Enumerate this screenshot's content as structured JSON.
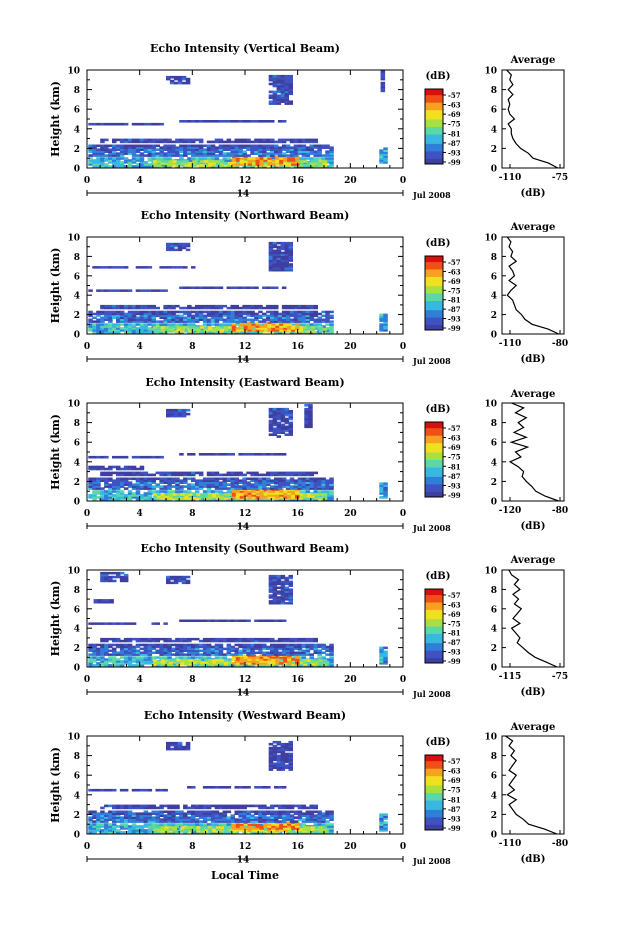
{
  "figure": {
    "xlabel": "Local Time",
    "date_label": "Jul 2008",
    "day_label": "14",
    "colorbar_unit": "(dB)",
    "colorbar_ticks": [
      "-57",
      "-63",
      "-69",
      "-75",
      "-81",
      "-87",
      "-93",
      "-99"
    ],
    "average_title": "Average",
    "average_xlabel": "(dB)"
  },
  "colormap": [
    "#e8ffe8",
    "#3f3fa0",
    "#3f52c2",
    "#2f7fd8",
    "#38b8e0",
    "#5cd8a8",
    "#a8e040",
    "#f0e020",
    "#f8a020",
    "#f05018",
    "#d81010"
  ],
  "chart_data": [
    {
      "type": "heatmap",
      "title": "Echo Intensity (Vertical Beam)",
      "xlabel": "Local Time",
      "ylabel": "Height (km)",
      "xlim": [
        0,
        24
      ],
      "ylim": [
        0,
        10
      ],
      "xticks": [
        "0",
        "4",
        "8",
        "12",
        "16",
        "20",
        "0"
      ],
      "yticks": [
        "0",
        "2",
        "4",
        "6",
        "8",
        "10"
      ],
      "colorbar": {
        "label": "(dB)",
        "range": [
          -99,
          -57
        ],
        "ticks": [
          "-57",
          "-63",
          "-69",
          "-75",
          "-81",
          "-87",
          "-93",
          "-99"
        ]
      },
      "average": {
        "title": "Average",
        "xlabel": "(dB)",
        "xticks": [
          "-110",
          "-75"
        ],
        "xlim": [
          -112,
          -72
        ],
        "heights": [
          0,
          0.5,
          1,
          1.5,
          2,
          2.5,
          3,
          3.5,
          4,
          4.5,
          5,
          5.5,
          6,
          6.5,
          7,
          7.5,
          8,
          8.5,
          9,
          9.5,
          10
        ],
        "values": [
          -76,
          -82,
          -92,
          -95,
          -100,
          -103,
          -105,
          -106,
          -106,
          -108,
          -104,
          -107,
          -108,
          -107,
          -108,
          -105,
          -108,
          -105,
          -107,
          -106,
          -109
        ]
      }
    },
    {
      "type": "heatmap",
      "title": "Echo Intensity (Northward Beam)",
      "xlabel": "Local Time",
      "ylabel": "Height (km)",
      "xlim": [
        0,
        24
      ],
      "ylim": [
        0,
        10
      ],
      "xticks": [
        "0",
        "4",
        "8",
        "12",
        "16",
        "20",
        "0"
      ],
      "yticks": [
        "0",
        "2",
        "4",
        "6",
        "8",
        "10"
      ],
      "colorbar": {
        "label": "(dB)",
        "range": [
          -99,
          -57
        ],
        "ticks": [
          "-57",
          "-63",
          "-69",
          "-75",
          "-81",
          "-87",
          "-93",
          "-99"
        ]
      },
      "average": {
        "title": "Average",
        "xlabel": "(dB)",
        "xticks": [
          "-110",
          "-80"
        ],
        "xlim": [
          -112,
          -77
        ],
        "heights": [
          0,
          0.5,
          1,
          1.5,
          2,
          2.5,
          3,
          3.5,
          4,
          4.5,
          5,
          5.5,
          6,
          6.5,
          7,
          7.5,
          8,
          8.5,
          9,
          9.5,
          10
        ],
        "values": [
          -80,
          -86,
          -95,
          -99,
          -101,
          -104,
          -105,
          -106,
          -109,
          -107,
          -104,
          -108,
          -105,
          -106,
          -108,
          -104,
          -107,
          -106,
          -108,
          -107,
          -109
        ]
      }
    },
    {
      "type": "heatmap",
      "title": "Echo Intensity (Eastward Beam)",
      "xlabel": "Local Time",
      "ylabel": "Height (km)",
      "xlim": [
        0,
        24
      ],
      "ylim": [
        0,
        10
      ],
      "xticks": [
        "0",
        "4",
        "8",
        "12",
        "16",
        "20",
        "0"
      ],
      "yticks": [
        "0",
        "2",
        "4",
        "6",
        "8",
        "10"
      ],
      "colorbar": {
        "label": "(dB)",
        "range": [
          -99,
          -57
        ],
        "ticks": [
          "-57",
          "-63",
          "-69",
          "-75",
          "-81",
          "-87",
          "-93",
          "-99"
        ]
      },
      "average": {
        "title": "Average",
        "xlabel": "(dB)",
        "xticks": [
          "-120",
          "-80"
        ],
        "xlim": [
          -122,
          -76
        ],
        "heights": [
          0,
          0.5,
          1,
          1.5,
          2,
          2.5,
          3,
          3.5,
          4,
          4.5,
          5,
          5.5,
          6,
          6.5,
          7,
          7.5,
          8,
          8.5,
          9,
          9.5,
          10
        ],
        "values": [
          -80,
          -90,
          -97,
          -100,
          -104,
          -107,
          -106,
          -110,
          -116,
          -108,
          -112,
          -103,
          -115,
          -104,
          -113,
          -106,
          -110,
          -104,
          -112,
          -106,
          -115
        ]
      }
    },
    {
      "type": "heatmap",
      "title": "Echo Intensity (Southward Beam)",
      "xlabel": "Local Time",
      "ylabel": "Height (km)",
      "xlim": [
        0,
        24
      ],
      "ylim": [
        0,
        10
      ],
      "xticks": [
        "0",
        "4",
        "8",
        "12",
        "16",
        "20",
        "0"
      ],
      "yticks": [
        "0",
        "2",
        "4",
        "6",
        "8",
        "10"
      ],
      "colorbar": {
        "label": "(dB)",
        "range": [
          -99,
          -57
        ],
        "ticks": [
          "-57",
          "-63",
          "-69",
          "-75",
          "-81",
          "-87",
          "-93",
          "-99"
        ]
      },
      "average": {
        "title": "Average",
        "xlabel": "(dB)",
        "xticks": [
          "-115",
          "-75"
        ],
        "xlim": [
          -117,
          -72
        ],
        "heights": [
          0,
          0.5,
          1,
          1.5,
          2,
          2.5,
          3,
          3.5,
          4,
          4.5,
          5,
          5.5,
          6,
          6.5,
          7,
          7.5,
          8,
          8.5,
          9,
          9.5,
          10
        ],
        "values": [
          -77,
          -85,
          -93,
          -98,
          -102,
          -106,
          -104,
          -107,
          -110,
          -104,
          -109,
          -106,
          -103,
          -108,
          -105,
          -109,
          -104,
          -108,
          -105,
          -110,
          -112
        ]
      }
    },
    {
      "type": "heatmap",
      "title": "Echo Intensity (Westward Beam)",
      "xlabel": "Local Time",
      "ylabel": "Height (km)",
      "xlim": [
        0,
        24
      ],
      "ylim": [
        0,
        10
      ],
      "xticks": [
        "0",
        "4",
        "8",
        "12",
        "16",
        "20",
        "0"
      ],
      "yticks": [
        "0",
        "2",
        "4",
        "6",
        "8",
        "10"
      ],
      "colorbar": {
        "label": "(dB)",
        "range": [
          -99,
          -57
        ],
        "ticks": [
          "-57",
          "-63",
          "-69",
          "-75",
          "-81",
          "-87",
          "-93",
          "-99"
        ]
      },
      "average": {
        "title": "Average",
        "xlabel": "(dB)",
        "xticks": [
          "-110",
          "-80"
        ],
        "xlim": [
          -112,
          -77
        ],
        "heights": [
          0,
          0.5,
          1,
          1.5,
          2,
          2.5,
          3,
          3.5,
          4,
          4.5,
          5,
          5.5,
          6,
          6.5,
          7,
          7.5,
          8,
          8.5,
          9,
          9.5,
          10
        ],
        "values": [
          -81,
          -88,
          -97,
          -100,
          -104,
          -106,
          -108,
          -104,
          -109,
          -105,
          -108,
          -106,
          -104,
          -108,
          -106,
          -104,
          -107,
          -105,
          -108,
          -106,
          -110
        ]
      }
    }
  ]
}
